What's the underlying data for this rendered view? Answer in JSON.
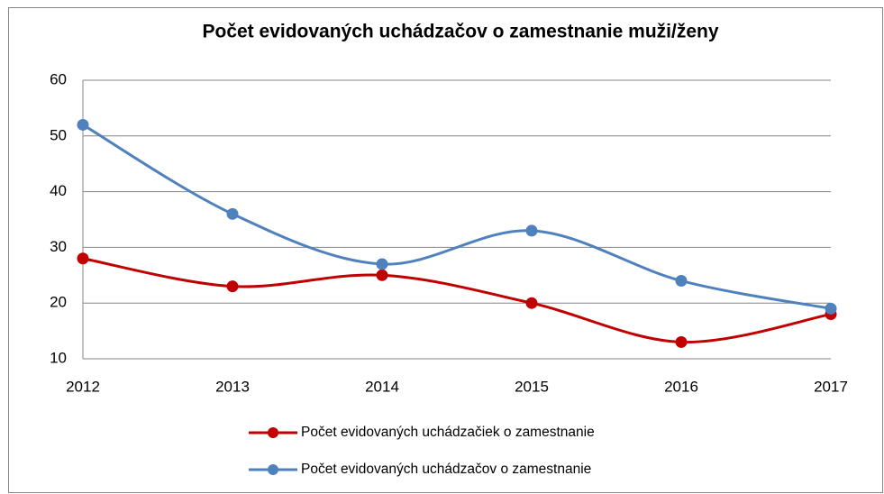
{
  "chart_data": {
    "type": "line",
    "title": "Počet evidovaných uchádzačov o zamestnanie muži/ženy",
    "categories": [
      "2012",
      "2013",
      "2014",
      "2015",
      "2016",
      "2017"
    ],
    "series": [
      {
        "name": "Počet evidovaných uchádzačiek o zamestnanie",
        "color": "#c00000",
        "values": [
          28,
          23,
          25,
          20,
          13,
          18
        ]
      },
      {
        "name": "Počet evidovaných uchádzačov o zamestnanie",
        "color": "#4f81bd",
        "values": [
          52,
          36,
          27,
          33,
          24,
          19
        ]
      }
    ],
    "ylim": [
      10,
      60
    ],
    "yticks": [
      10,
      20,
      30,
      40,
      50,
      60
    ],
    "grid": true,
    "smooth": true,
    "legend": "bottom"
  }
}
